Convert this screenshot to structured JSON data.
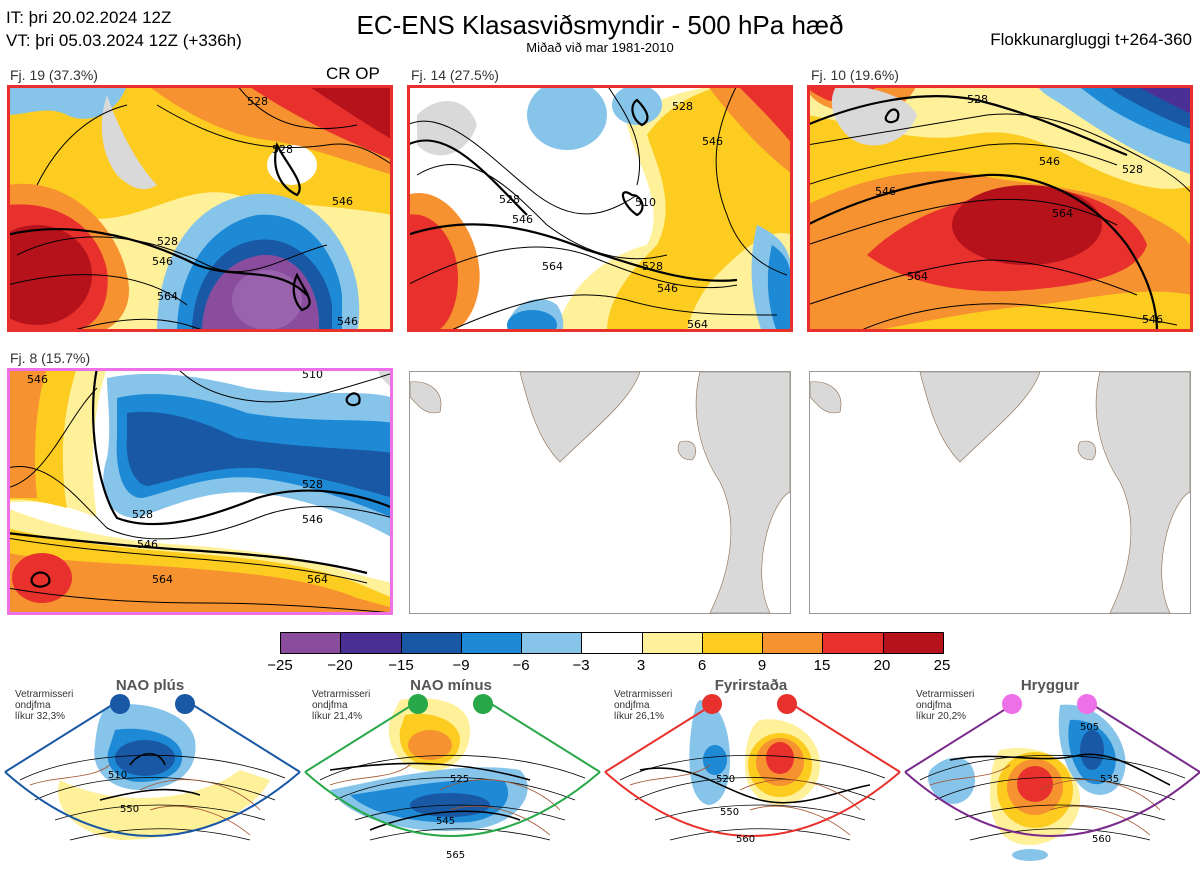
{
  "header": {
    "it": "IT: þri 20.02.2024 12Z",
    "vt": "VT: þri 05.03.2024 12Z  (+336h)",
    "title": "EC-ENS Klasasviðsmyndir - 500 hPa hæð",
    "subtitle": "Miðað við mar 1981-2010",
    "window": "Flokkunargluggi t+264-360"
  },
  "clusters": [
    {
      "label": "Fj. 19 (37.3%)",
      "badge": "CR OP",
      "border": "#e8302c"
    },
    {
      "label": "Fj. 14 (27.5%)",
      "border": "#e8302c"
    },
    {
      "label": "Fj. 10 (19.6%)",
      "border": "#e8302c"
    },
    {
      "label": "Fj. 8 (15.7%)",
      "border": "#ee70e8"
    }
  ],
  "contour_labels": {
    "p1": [
      "528",
      "546",
      "564",
      "528",
      "546",
      "528",
      "546"
    ],
    "p2": [
      "528",
      "546",
      "564",
      "510",
      "528",
      "546",
      "564",
      "528",
      "546"
    ],
    "p3": [
      "528",
      "546",
      "564",
      "546",
      "528",
      "564",
      "546"
    ],
    "p4": [
      "510",
      "528",
      "546",
      "564",
      "528",
      "546",
      "564",
      "546"
    ]
  },
  "legend": {
    "ticks": [
      "−25",
      "−20",
      "−15",
      "−9",
      "−6",
      "−3",
      "3",
      "6",
      "9",
      "15",
      "20",
      "25"
    ],
    "colors": [
      "#8a4d9e",
      "#4c2f94",
      "#1858a4",
      "#1e8ad6",
      "#86c4ea",
      "#ffffff",
      "#fff09a",
      "#fccd20",
      "#f79230",
      "#e8302c",
      "#b5121b"
    ]
  },
  "regimes": [
    {
      "name": "NAO plús",
      "note": [
        "Vetrarmisseri",
        "ondjfma",
        "líkur 32,3%"
      ],
      "color": "#1858a4",
      "contours": [
        "510",
        "550"
      ]
    },
    {
      "name": "NAO mínus",
      "note": [
        "Vetrarmisseri",
        "ondjfma",
        "líkur 21,4%"
      ],
      "color": "#29a84a",
      "contours": [
        "525",
        "545",
        "565"
      ]
    },
    {
      "name": "Fyrirstaða",
      "note": [
        "Vetrarmisseri",
        "ondjfma",
        "líkur 26,1%"
      ],
      "color": "#e8302c",
      "contours": [
        "520",
        "550",
        "560"
      ]
    },
    {
      "name": "Hryggur",
      "note": [
        "Vetrarmisseri",
        "ondjfma",
        "líkur 20,2%"
      ],
      "color": "#ee70e8",
      "contours": [
        "505",
        "535",
        "560"
      ]
    }
  ]
}
